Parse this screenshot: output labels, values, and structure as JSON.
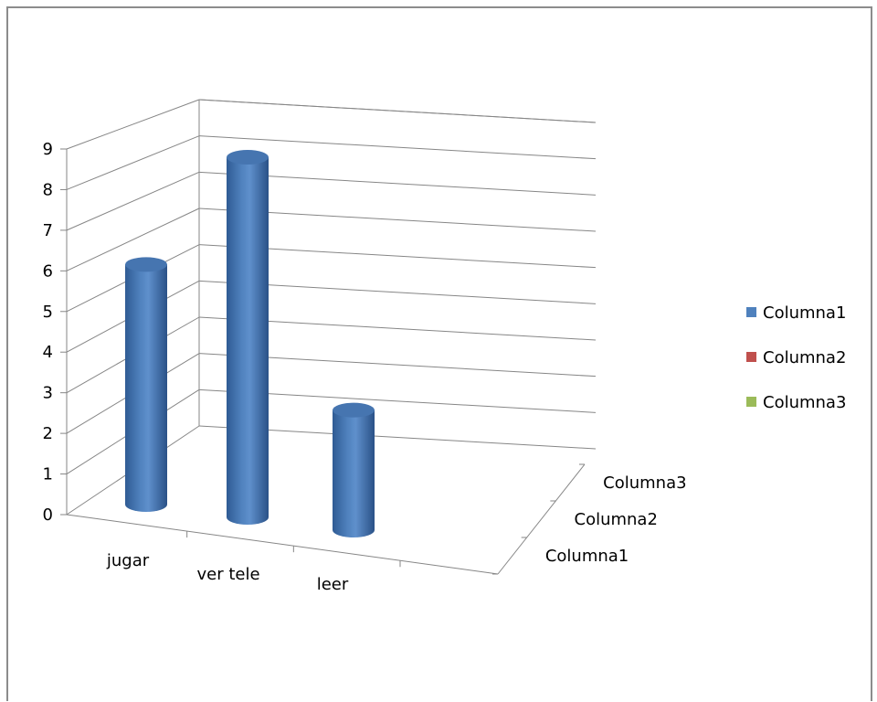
{
  "chart_data": {
    "type": "bar",
    "subtype": "3d-cylinder",
    "title": "",
    "xlabel": "",
    "ylabel": "",
    "categories": [
      "jugar",
      "ver tele",
      "leer"
    ],
    "series": [
      {
        "name": "Columna1",
        "values": [
          6,
          9,
          3
        ],
        "color": "#4f81bd"
      },
      {
        "name": "Columna2",
        "values": [
          null,
          null,
          null
        ],
        "color": "#c0504d"
      },
      {
        "name": "Columna3",
        "values": [
          null,
          null,
          null
        ],
        "color": "#9bbb59"
      }
    ],
    "depth_labels": [
      "Columna1",
      "Columna2",
      "Columna3"
    ],
    "ylim": [
      0,
      9
    ],
    "yticks": [
      "0",
      "1",
      "2",
      "3",
      "4",
      "5",
      "6",
      "7",
      "8",
      "9"
    ],
    "grid": true,
    "legend": "right"
  }
}
